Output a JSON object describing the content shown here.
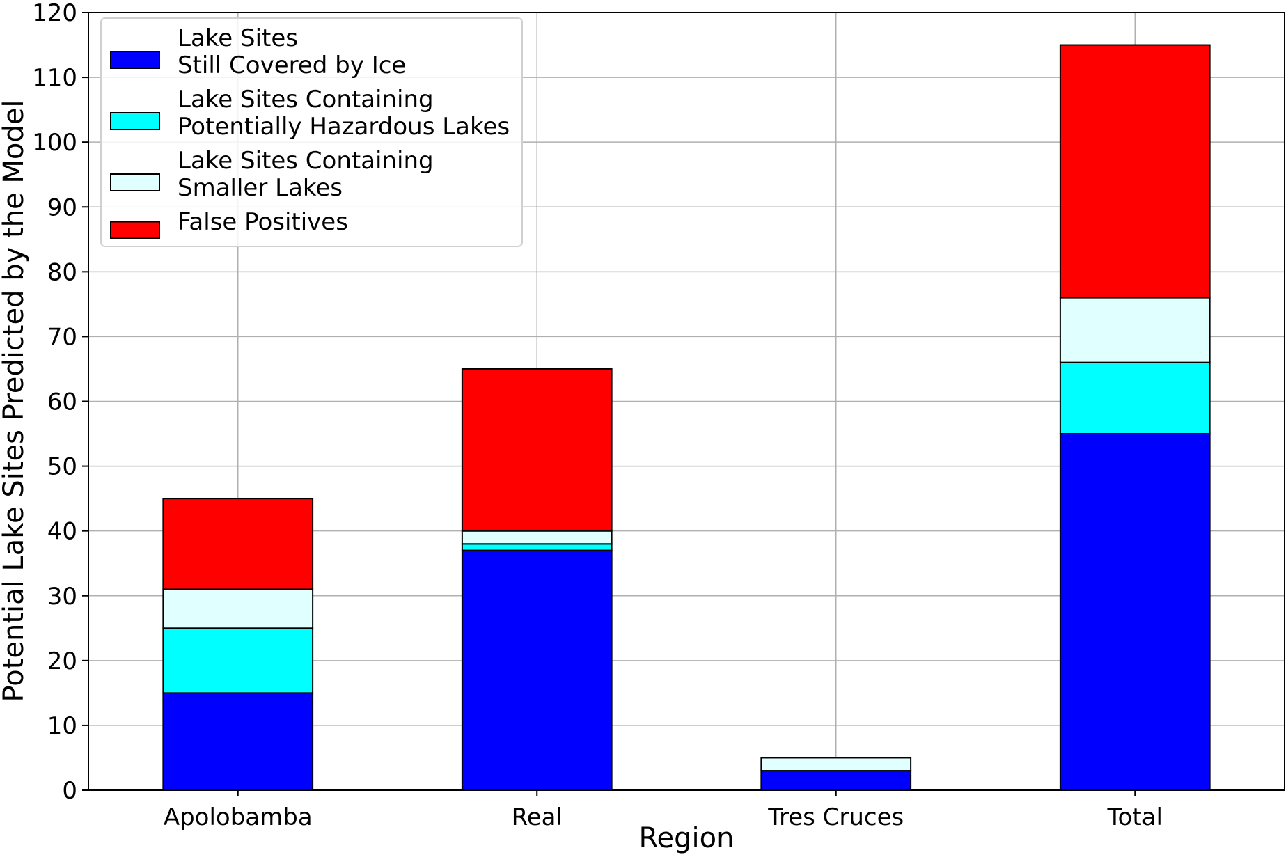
{
  "chart_data": {
    "type": "bar",
    "stacked": true,
    "title": "",
    "xlabel": "Region",
    "ylabel": "Potential Lake Sites Predicted by the Model",
    "categories": [
      "Apolobamba",
      "Real",
      "Tres Cruces",
      "Total"
    ],
    "series": [
      {
        "name": "Lake Sites\nStill Covered by Ice",
        "color": "#0000ff",
        "values": [
          15,
          37,
          3,
          55
        ]
      },
      {
        "name": "Lake Sites Containing\nPotentially Hazardous Lakes",
        "color": "#00ffff",
        "values": [
          10,
          1,
          0,
          11
        ]
      },
      {
        "name": "Lake Sites Containing\nSmaller Lakes",
        "color": "#e0ffff",
        "values": [
          6,
          2,
          2,
          10
        ]
      },
      {
        "name": "False Positives",
        "color": "#ff0000",
        "values": [
          14,
          25,
          0,
          39
        ]
      }
    ],
    "ylim": [
      0,
      120
    ],
    "yticks": [
      0,
      10,
      20,
      30,
      40,
      50,
      60,
      70,
      80,
      90,
      100,
      110,
      120
    ],
    "grid": true,
    "legend_position": "top-left"
  }
}
